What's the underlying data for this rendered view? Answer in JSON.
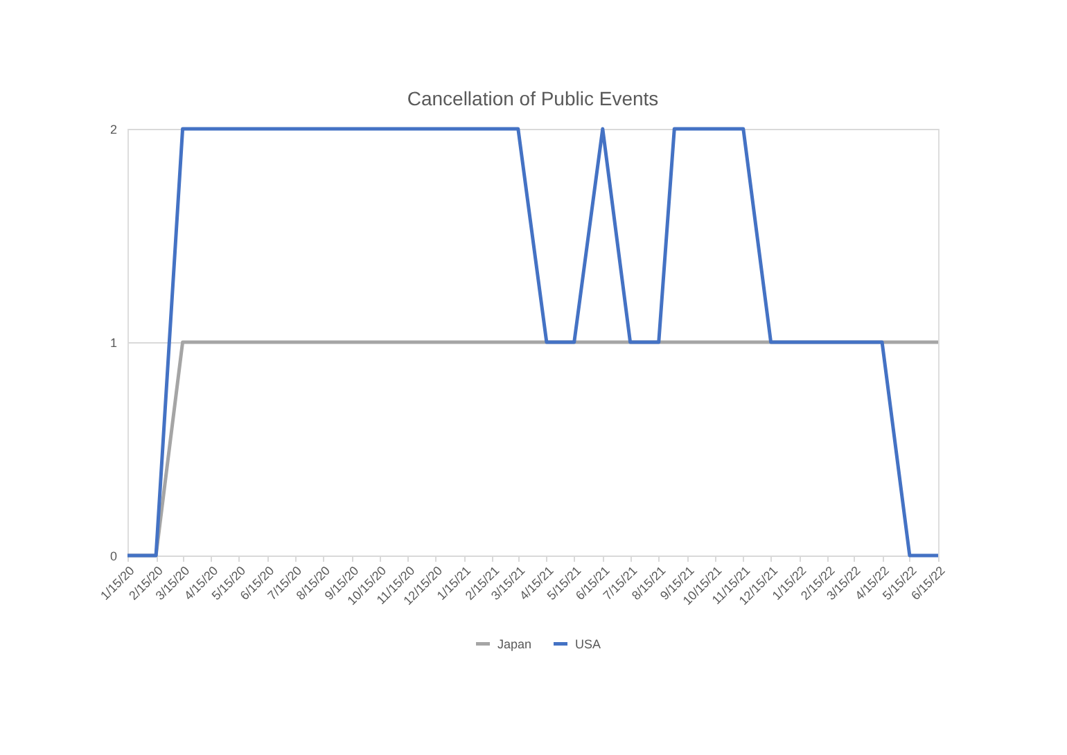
{
  "chart_data": {
    "type": "line",
    "title": "Cancellation of Public Events",
    "series": [
      {
        "name": "Japan",
        "color": "#a5a5a5",
        "x": [
          "2020-01-15",
          "2020-02-15",
          "2020-03-15",
          "2022-06-15"
        ],
        "values": [
          0,
          0,
          1,
          1
        ]
      },
      {
        "name": "USA",
        "color": "#4472c4",
        "x": [
          "2020-01-15",
          "2020-02-15",
          "2020-03-15",
          "2021-03-15",
          "2021-04-15",
          "2021-05-15",
          "2021-06-15",
          "2021-07-15",
          "2021-08-15",
          "2021-09-01",
          "2021-11-15",
          "2021-12-15",
          "2022-04-15",
          "2022-05-15",
          "2022-06-15"
        ],
        "values": [
          0,
          0,
          2,
          2,
          1,
          1,
          2,
          1,
          1,
          2,
          2,
          1,
          1,
          0,
          0
        ]
      }
    ],
    "xlim": [
      "2020-01-15",
      "2022-06-15"
    ],
    "xticks": [
      {
        "value": "2020-01-15",
        "label": "1/15/20"
      },
      {
        "value": "2020-02-15",
        "label": "2/15/20"
      },
      {
        "value": "2020-03-15",
        "label": "3/15/20"
      },
      {
        "value": "2020-04-15",
        "label": "4/15/20"
      },
      {
        "value": "2020-05-15",
        "label": "5/15/20"
      },
      {
        "value": "2020-06-15",
        "label": "6/15/20"
      },
      {
        "value": "2020-07-15",
        "label": "7/15/20"
      },
      {
        "value": "2020-08-15",
        "label": "8/15/20"
      },
      {
        "value": "2020-09-15",
        "label": "9/15/20"
      },
      {
        "value": "2020-10-15",
        "label": "10/15/20"
      },
      {
        "value": "2020-11-15",
        "label": "11/15/20"
      },
      {
        "value": "2020-12-15",
        "label": "12/15/20"
      },
      {
        "value": "2021-01-15",
        "label": "1/15/21"
      },
      {
        "value": "2021-02-15",
        "label": "2/15/21"
      },
      {
        "value": "2021-03-15",
        "label": "3/15/21"
      },
      {
        "value": "2021-04-15",
        "label": "4/15/21"
      },
      {
        "value": "2021-05-15",
        "label": "5/15/21"
      },
      {
        "value": "2021-06-15",
        "label": "6/15/21"
      },
      {
        "value": "2021-07-15",
        "label": "7/15/21"
      },
      {
        "value": "2021-08-15",
        "label": "8/15/21"
      },
      {
        "value": "2021-09-15",
        "label": "9/15/21"
      },
      {
        "value": "2021-10-15",
        "label": "10/15/21"
      },
      {
        "value": "2021-11-15",
        "label": "11/15/21"
      },
      {
        "value": "2021-12-15",
        "label": "12/15/21"
      },
      {
        "value": "2022-01-15",
        "label": "1/15/22"
      },
      {
        "value": "2022-02-15",
        "label": "2/15/22"
      },
      {
        "value": "2022-03-15",
        "label": "3/15/22"
      },
      {
        "value": "2022-04-15",
        "label": "4/15/22"
      },
      {
        "value": "2022-05-15",
        "label": "5/15/22"
      },
      {
        "value": "2022-06-15",
        "label": "6/15/22"
      }
    ],
    "ylim": [
      0,
      2
    ],
    "yticks": [
      0,
      1,
      2
    ],
    "grid": "y",
    "legend": "bottom",
    "marker": "none",
    "line_style": "solid"
  }
}
